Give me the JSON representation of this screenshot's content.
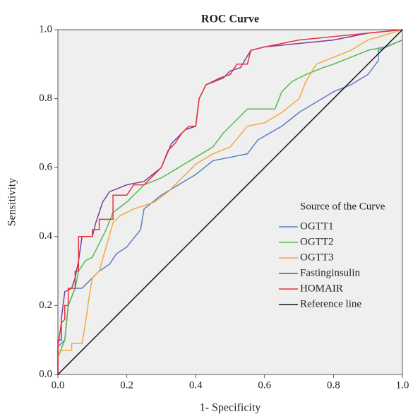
{
  "chart_data": {
    "type": "line",
    "title": "ROC Curve",
    "xlabel": "1- Specificity",
    "ylabel": "Sensitivity",
    "xlim": [
      0,
      1
    ],
    "ylim": [
      0,
      1
    ],
    "xticks": [
      {
        "value": 0,
        "label": "0.0"
      },
      0.2,
      0.4,
      0.6,
      0.8,
      {
        "value": 1,
        "label": "1.0"
      }
    ],
    "yticks": [
      {
        "value": 0,
        "label": "0.0"
      },
      0.2,
      0.4,
      0.6,
      0.8,
      {
        "value": 1,
        "label": "1.0"
      }
    ],
    "grid": false,
    "legend_title": "Source of the Curve",
    "legend": "lower right",
    "series": [
      {
        "name": "OGTT1",
        "color": "#5b7fc2",
        "x": [
          0,
          0,
          0.02,
          0.03,
          0.05,
          0.07,
          0.1,
          0.12,
          0.15,
          0.17,
          0.2,
          0.24,
          0.25,
          0.3,
          0.35,
          0.4,
          0.45,
          0.5,
          0.55,
          0.58,
          0.65,
          0.7,
          0.75,
          0.8,
          0.85,
          0.9,
          0.93,
          0.93,
          1
        ],
        "values": [
          0,
          0.08,
          0.1,
          0.2,
          0.25,
          0.25,
          0.28,
          0.3,
          0.32,
          0.35,
          0.37,
          0.42,
          0.48,
          0.52,
          0.55,
          0.58,
          0.62,
          0.63,
          0.64,
          0.68,
          0.72,
          0.76,
          0.79,
          0.82,
          0.84,
          0.87,
          0.91,
          0.94,
          0.97
        ]
      },
      {
        "name": "OGTT2",
        "color": "#55bb4f",
        "x": [
          0,
          0,
          0.02,
          0.03,
          0.05,
          0.06,
          0.08,
          0.1,
          0.12,
          0.14,
          0.16,
          0.2,
          0.25,
          0.3,
          0.35,
          0.4,
          0.45,
          0.48,
          0.5,
          0.53,
          0.55,
          0.63,
          0.65,
          0.68,
          0.72,
          0.77,
          0.8,
          0.85,
          0.9,
          0.95,
          1
        ],
        "values": [
          0,
          0.05,
          0.1,
          0.2,
          0.25,
          0.3,
          0.33,
          0.34,
          0.38,
          0.42,
          0.47,
          0.5,
          0.55,
          0.57,
          0.6,
          0.63,
          0.66,
          0.7,
          0.72,
          0.75,
          0.77,
          0.77,
          0.82,
          0.85,
          0.87,
          0.89,
          0.9,
          0.92,
          0.94,
          0.95,
          0.97
        ]
      },
      {
        "name": "OGTT3",
        "color": "#f5a93a",
        "x": [
          0,
          0,
          0.01,
          0.04,
          0.04,
          0.07,
          0.08,
          0.09,
          0.1,
          0.12,
          0.14,
          0.16,
          0.18,
          0.22,
          0.28,
          0.32,
          0.36,
          0.4,
          0.45,
          0.5,
          0.55,
          0.6,
          0.65,
          0.7,
          0.72,
          0.75,
          0.8,
          0.85,
          0.9,
          1
        ],
        "values": [
          0,
          0.05,
          0.07,
          0.07,
          0.09,
          0.09,
          0.15,
          0.22,
          0.28,
          0.3,
          0.37,
          0.44,
          0.46,
          0.48,
          0.5,
          0.53,
          0.57,
          0.61,
          0.64,
          0.66,
          0.72,
          0.73,
          0.76,
          0.8,
          0.85,
          0.9,
          0.92,
          0.94,
          0.97,
          1
        ]
      },
      {
        "name": "Fastinginsulin",
        "color": "#7b3c9b",
        "x": [
          0,
          0,
          0.01,
          0.01,
          0.02,
          0.04,
          0.05,
          0.06,
          0.07,
          0.1,
          0.11,
          0.13,
          0.15,
          0.2,
          0.25,
          0.3,
          0.33,
          0.35,
          0.37,
          0.4,
          0.41,
          0.43,
          0.48,
          0.5,
          0.53,
          0.56,
          0.6,
          0.7,
          0.8,
          0.9,
          1
        ],
        "values": [
          0,
          0.1,
          0.1,
          0.16,
          0.24,
          0.25,
          0.28,
          0.33,
          0.4,
          0.4,
          0.44,
          0.5,
          0.53,
          0.55,
          0.56,
          0.6,
          0.67,
          0.69,
          0.71,
          0.72,
          0.8,
          0.84,
          0.86,
          0.88,
          0.89,
          0.94,
          0.95,
          0.96,
          0.97,
          0.99,
          1
        ]
      },
      {
        "name": "HOMAIR",
        "color": "#e8333a",
        "x": [
          0,
          0,
          0.01,
          0.02,
          0.02,
          0.03,
          0.03,
          0.05,
          0.05,
          0.06,
          0.06,
          0.1,
          0.1,
          0.12,
          0.12,
          0.16,
          0.16,
          0.2,
          0.22,
          0.25,
          0.27,
          0.3,
          0.32,
          0.34,
          0.36,
          0.38,
          0.4,
          0.41,
          0.43,
          0.47,
          0.5,
          0.52,
          0.55,
          0.56,
          0.6,
          0.65,
          0.7,
          0.8,
          0.9,
          1
        ],
        "values": [
          0,
          0.08,
          0.15,
          0.16,
          0.2,
          0.2,
          0.25,
          0.25,
          0.3,
          0.3,
          0.4,
          0.4,
          0.42,
          0.42,
          0.45,
          0.45,
          0.52,
          0.52,
          0.55,
          0.55,
          0.57,
          0.6,
          0.65,
          0.67,
          0.7,
          0.72,
          0.72,
          0.8,
          0.84,
          0.86,
          0.87,
          0.9,
          0.9,
          0.94,
          0.95,
          0.96,
          0.97,
          0.98,
          0.99,
          1
        ]
      },
      {
        "name": "Reference line",
        "color": "#111111",
        "x": [
          0,
          1
        ],
        "values": [
          0,
          1
        ]
      }
    ]
  }
}
